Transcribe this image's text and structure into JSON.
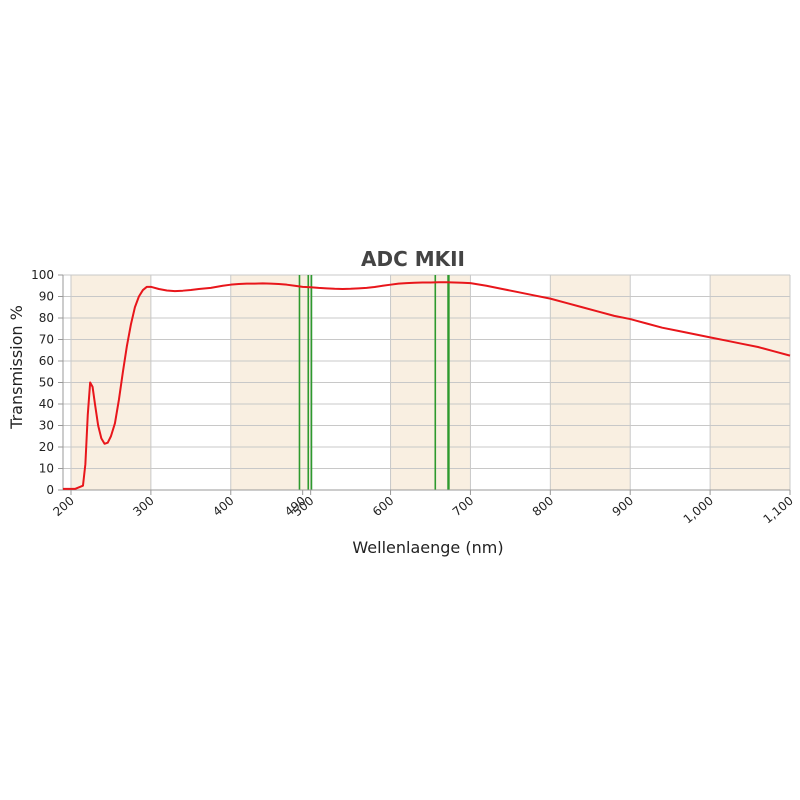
{
  "chart_data": {
    "type": "line",
    "title": "ADC MKII",
    "xlabel": "Wellenlaenge (nm)",
    "ylabel": "Transmission %",
    "xlim": [
      190,
      1100
    ],
    "ylim": [
      0,
      100
    ],
    "grid": true,
    "x_ticks": [
      {
        "value": 200,
        "label": "200"
      },
      {
        "value": 300,
        "label": "300"
      },
      {
        "value": 400,
        "label": "400"
      },
      {
        "value": 490,
        "label": "490"
      },
      {
        "value": 500,
        "label": "500"
      },
      {
        "value": 600,
        "label": "600"
      },
      {
        "value": 700,
        "label": "700"
      },
      {
        "value": 800,
        "label": "800"
      },
      {
        "value": 900,
        "label": "900"
      },
      {
        "value": 1000,
        "label": "1,000"
      },
      {
        "value": 1100,
        "label": "1,100"
      }
    ],
    "y_ticks": [
      0,
      10,
      20,
      30,
      40,
      50,
      60,
      70,
      80,
      90,
      100
    ],
    "shaded_bands": [
      [
        200,
        300
      ],
      [
        400,
        500
      ],
      [
        600,
        700
      ],
      [
        800,
        900
      ],
      [
        1000,
        1100
      ]
    ],
    "reference_lines": [
      486,
      497,
      501,
      656,
      672,
      673
    ],
    "series": [
      {
        "color": "#e8161b",
        "x": [
          190,
          205,
          215,
          218,
          221,
          224,
          227,
          230,
          234,
          238,
          242,
          246,
          250,
          255,
          260,
          265,
          270,
          275,
          280,
          285,
          290,
          295,
          300,
          310,
          320,
          330,
          340,
          350,
          360,
          375,
          390,
          400,
          410,
          420,
          430,
          440,
          450,
          460,
          470,
          480,
          490,
          500,
          510,
          520,
          530,
          540,
          550,
          560,
          570,
          580,
          590,
          600,
          610,
          620,
          630,
          640,
          650,
          660,
          670,
          680,
          690,
          700,
          720,
          740,
          760,
          780,
          800,
          820,
          840,
          860,
          880,
          900,
          920,
          940,
          960,
          980,
          1000,
          1020,
          1040,
          1060,
          1080,
          1100
        ],
        "y": [
          0.5,
          0.5,
          2,
          12,
          35,
          50,
          48,
          40,
          30,
          24,
          21.5,
          22,
          25,
          31,
          42,
          55,
          67,
          77,
          85,
          90,
          93,
          94.5,
          94.5,
          93.5,
          92.8,
          92.5,
          92.7,
          93,
          93.5,
          94,
          95,
          95.5,
          95.8,
          96,
          96,
          96.1,
          96,
          95.8,
          95.5,
          95,
          94.5,
          94.3,
          94,
          93.8,
          93.6,
          93.5,
          93.6,
          93.8,
          94,
          94.4,
          95,
          95.5,
          96,
          96.2,
          96.4,
          96.5,
          96.5,
          96.6,
          96.6,
          96.5,
          96.4,
          96.2,
          95,
          93.5,
          92,
          90.5,
          89,
          87,
          85,
          83,
          81,
          79.5,
          77.5,
          75.5,
          74,
          72.5,
          71,
          69.5,
          68,
          66.5,
          64.5,
          62.5
        ]
      }
    ]
  },
  "colors": {
    "band": "#f9efe1",
    "grid": "#c8c8c8",
    "axis": "#999999",
    "reference_line": "#2e9a2e",
    "series": "#e8161b"
  }
}
